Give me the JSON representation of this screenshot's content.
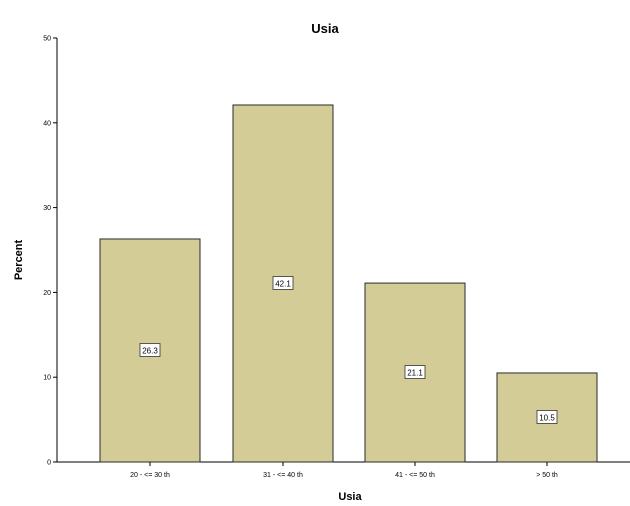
{
  "chart_data": {
    "type": "bar",
    "title": "Usia",
    "xlabel": "Usia",
    "ylabel": "Percent",
    "categories": [
      "20 - <= 30 th",
      "31 - <= 40 th",
      "41 - <= 50 th",
      "> 50 th"
    ],
    "values": [
      26.3,
      42.1,
      21.1,
      10.5
    ],
    "data_labels": [
      "26.3",
      "42.1",
      "21.1",
      "10.5"
    ],
    "ylim": [
      0,
      50
    ],
    "yticks": [
      0,
      10,
      20,
      30,
      40,
      50
    ],
    "grid": false,
    "legend": "none",
    "bar_color": "#d4cc96",
    "bar_edge_color": "#2a2a2a"
  }
}
